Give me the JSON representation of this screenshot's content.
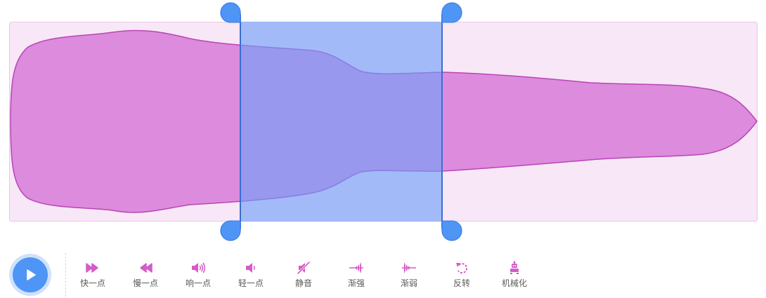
{
  "editor": {
    "colors": {
      "waveform": "#dd8bdd",
      "waveform_stroke": "#b845b8",
      "background": "#f8e7f6",
      "selection": "#6d9ff8",
      "handle": "#4f95f6",
      "icon": "#d65bc8"
    }
  },
  "player": {
    "play_icon": "play-icon"
  },
  "toolbar": {
    "tools": [
      {
        "label": "快一点",
        "icon": "fast-forward-icon"
      },
      {
        "label": "慢一点",
        "icon": "rewind-icon"
      },
      {
        "label": "响一点",
        "icon": "volume-up-icon"
      },
      {
        "label": "轻一点",
        "icon": "volume-down-icon"
      },
      {
        "label": "静音",
        "icon": "mute-icon"
      },
      {
        "label": "渐强",
        "icon": "fade-in-icon"
      },
      {
        "label": "渐弱",
        "icon": "fade-out-icon"
      },
      {
        "label": "反转",
        "icon": "reverse-icon"
      },
      {
        "label": "机械化",
        "icon": "robot-icon"
      }
    ]
  }
}
